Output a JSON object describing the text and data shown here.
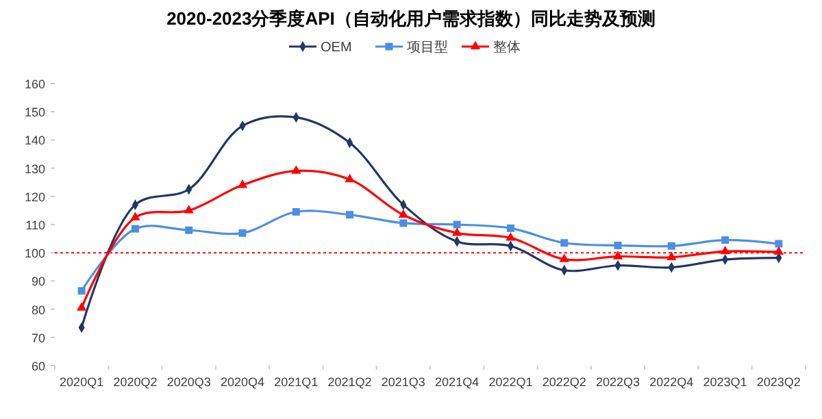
{
  "chart_data": {
    "type": "line",
    "title": "2020-2023分季度API（自动化用户需求指数）同比走势及预测",
    "categories": [
      "2020Q1",
      "2020Q2",
      "2020Q3",
      "2020Q4",
      "2021Q1",
      "2021Q2",
      "2021Q3",
      "2021Q4",
      "2022Q1",
      "2022Q2",
      "2022Q3",
      "2022Q4",
      "2023Q1",
      "2023Q2"
    ],
    "series": [
      {
        "name": "OEM",
        "color": "#203864",
        "marker": "diamond",
        "values": [
          73.5,
          117,
          122.5,
          145,
          148,
          139,
          117,
          104,
          102.4,
          93.8,
          95.5,
          94.8,
          97.6,
          98.2
        ]
      },
      {
        "name": "项目型",
        "color": "#4a90e2",
        "marker": "square",
        "values": [
          86.5,
          108.5,
          108,
          107,
          114.5,
          113.5,
          110.5,
          110,
          108.7,
          103.5,
          102.6,
          102.4,
          104.5,
          103.2
        ]
      },
      {
        "name": "整体",
        "color": "#ff0000",
        "marker": "triangle",
        "values": [
          80.5,
          112.5,
          115,
          124,
          129,
          126,
          113.4,
          107,
          105.3,
          97.7,
          98.7,
          98.4,
          100.5,
          100.3
        ]
      }
    ],
    "ylim": [
      60,
      160
    ],
    "yticks": [
      60,
      70,
      80,
      90,
      100,
      110,
      120,
      130,
      140,
      150,
      160
    ],
    "ref_lines": [
      {
        "axis": "y",
        "value": 100,
        "color": "#ff0000",
        "line_style": "dotted"
      }
    ],
    "legend": "top",
    "grid": false
  }
}
